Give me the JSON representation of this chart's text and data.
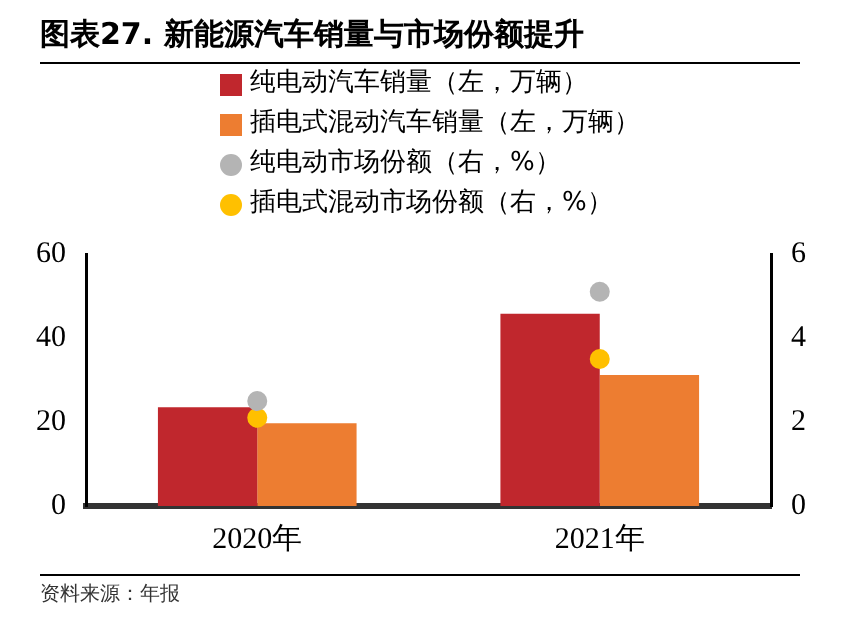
{
  "chart_data": {
    "type": "bar",
    "title": "图表27. 新能源汽车销量与市场份额提升",
    "categories": [
      "2020年",
      "2021年"
    ],
    "series": [
      {
        "name": "纯电动汽车销量（左，万辆）",
        "color": "#c0272d",
        "values": [
          23.5,
          45.8
        ]
      },
      {
        "name": "插电式混动汽车销量（左，万辆）",
        "color": "#ed7d31",
        "values": [
          19.7,
          31.2
        ]
      },
      {
        "name": "纯电动市场份额（右，%）",
        "type": "scatter",
        "axis": "y2",
        "color": "#b4b4b4",
        "x": [
          "2020年",
          "2021年"
        ],
        "values": [
          2.5,
          5.1
        ]
      },
      {
        "name": "插电式混动市场份额（右，%）",
        "type": "scatter",
        "axis": "y2",
        "color": "#ffc000",
        "x": [
          "2020年",
          "2021年"
        ],
        "values": [
          2.1,
          3.5
        ]
      }
    ],
    "ylim": [
      0,
      60
    ],
    "yticks": [
      0,
      20,
      40,
      60
    ],
    "y2lim": [
      0,
      6
    ],
    "y2ticks": [
      0,
      2,
      4,
      6
    ],
    "grid": false,
    "legend": "top",
    "marker": "circle",
    "annotations": [
      "资料来源：年报"
    ]
  }
}
